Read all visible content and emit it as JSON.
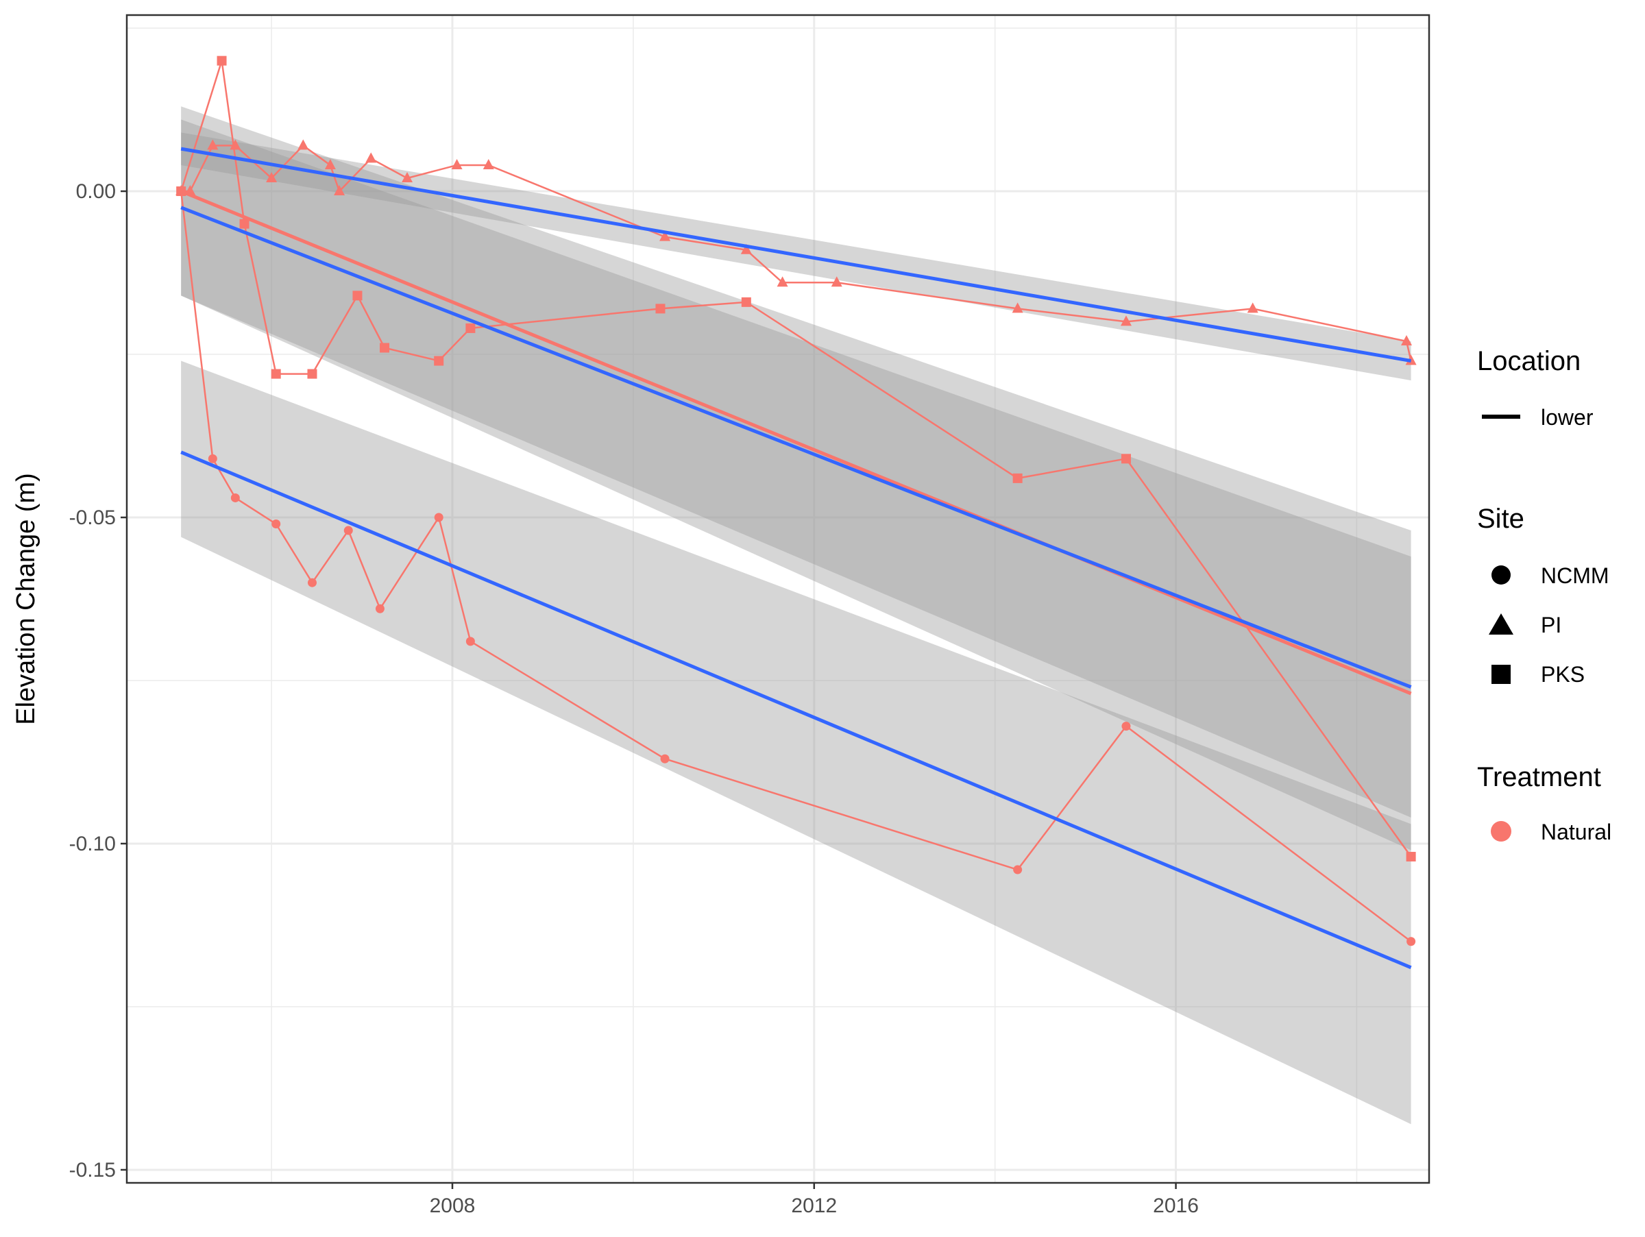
{
  "chart_data": {
    "type": "line",
    "title": "",
    "xlabel": "",
    "ylabel": "Elevation Change (m)",
    "xlim": [
      2004.4,
      2018.8
    ],
    "ylim": [
      -0.152,
      0.027
    ],
    "x_ticks": [
      2008,
      2012,
      2016
    ],
    "x_tick_labels": [
      "2008",
      "2012",
      "2016"
    ],
    "x_minor_ticks": [
      2006,
      2010,
      2014,
      2018
    ],
    "y_ticks": [
      -0.15,
      -0.1,
      -0.05,
      0.0
    ],
    "y_tick_labels": [
      "-0.15",
      "-0.10",
      "-0.05",
      "0.00"
    ],
    "y_minor_ticks": [
      -0.125,
      -0.075,
      -0.025,
      0.025
    ],
    "grid": true,
    "legend_position": "right",
    "colors": {
      "natural": "#F8766D",
      "fit": "#3366FF",
      "band": "#999999",
      "panel_border": "#333333",
      "grid": "#ebebeb"
    },
    "legend": {
      "location": {
        "title": "Location",
        "items": [
          "lower"
        ]
      },
      "site": {
        "title": "Site",
        "items": [
          {
            "label": "NCMM",
            "shape": "circle"
          },
          {
            "label": "PI",
            "shape": "triangle"
          },
          {
            "label": "PKS",
            "shape": "square"
          }
        ]
      },
      "treatment": {
        "title": "Treatment",
        "items": [
          "Natural"
        ]
      }
    },
    "series": [
      {
        "site": "NCMM",
        "shape": "circle",
        "x": [
          2005.0,
          2005.35,
          2005.6,
          2006.05,
          2006.45,
          2006.85,
          2007.2,
          2007.85,
          2008.2,
          2010.35,
          2014.25,
          2015.45,
          2018.6
        ],
        "y": [
          0.0,
          -0.041,
          -0.047,
          -0.051,
          -0.06,
          -0.052,
          -0.064,
          -0.05,
          -0.069,
          -0.087,
          -0.104,
          -0.082,
          -0.115
        ],
        "fit": {
          "x": [
            2005.0,
            2018.6
          ],
          "y": [
            -0.04,
            -0.119
          ],
          "band_lower": [
            -0.053,
            -0.143
          ],
          "band_upper": [
            -0.026,
            -0.097
          ]
        },
        "band2": {
          "x": [
            2005.0,
            2018.6
          ],
          "lower": [
            -0.016,
            -0.101
          ],
          "upper": [
            0.013,
            -0.052
          ]
        }
      },
      {
        "site": "PI",
        "shape": "triangle",
        "x": [
          2005.0,
          2005.1,
          2005.35,
          2005.6,
          2006.0,
          2006.35,
          2006.65,
          2006.75,
          2007.1,
          2007.5,
          2008.05,
          2008.4,
          2010.35,
          2011.25,
          2011.65,
          2012.25,
          2014.25,
          2015.45,
          2016.85,
          2018.55,
          2018.6
        ],
        "y": [
          0.0,
          0.0,
          0.007,
          0.007,
          0.002,
          0.007,
          0.004,
          0.0,
          0.005,
          0.002,
          0.004,
          0.004,
          -0.007,
          -0.009,
          -0.014,
          -0.014,
          -0.018,
          -0.02,
          -0.018,
          -0.023,
          -0.026
        ],
        "fit": {
          "x": [
            2005.0,
            2018.6
          ],
          "y": [
            0.0065,
            -0.026
          ],
          "band_lower": [
            0.004,
            -0.029
          ],
          "band_upper": [
            0.009,
            -0.023
          ]
        }
      },
      {
        "site": "PKS",
        "shape": "square",
        "x": [
          2005.0,
          2005.45,
          2005.7,
          2006.05,
          2006.45,
          2006.95,
          2007.25,
          2007.85,
          2008.2,
          2010.3,
          2011.25,
          2014.25,
          2015.45,
          2018.6
        ],
        "y": [
          0.0,
          0.02,
          -0.005,
          -0.028,
          -0.028,
          -0.016,
          -0.024,
          -0.026,
          -0.021,
          -0.018,
          -0.017,
          -0.044,
          -0.041,
          -0.102
        ],
        "fit": {
          "x": [
            2005.0,
            2018.6
          ],
          "y": [
            -0.0025,
            -0.076
          ],
          "band_lower": [
            -0.016,
            -0.096
          ],
          "band_upper": [
            0.011,
            -0.056
          ]
        },
        "pooled_fit": {
          "x": [
            2005.0,
            2018.6
          ],
          "y": [
            0.0,
            -0.077
          ]
        }
      }
    ]
  }
}
